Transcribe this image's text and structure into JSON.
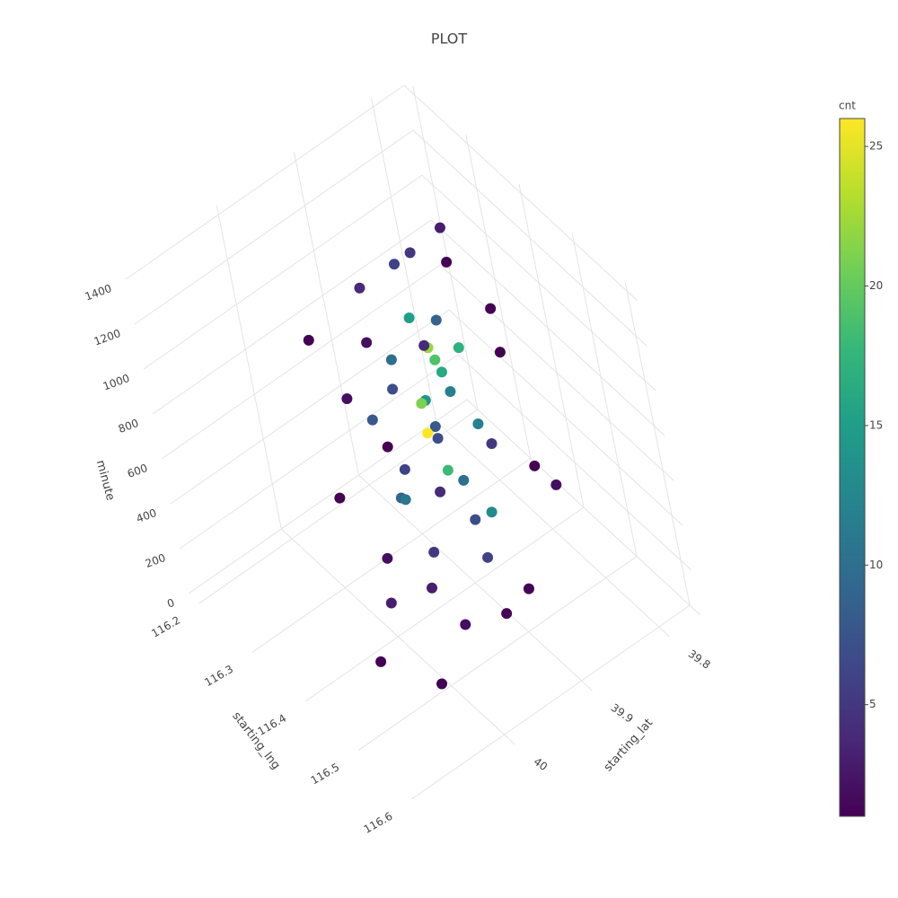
{
  "chart_data": {
    "type": "scatter3d",
    "title": "PLOT",
    "x_label": "starting_lng",
    "y_label": "starting_lat",
    "z_label": "minute",
    "colorbar_title": "cnt",
    "xlim": [
      116.18,
      116.62
    ],
    "ylim": [
      39.76,
      40.12
    ],
    "zlim": [
      0,
      1440
    ],
    "clim": [
      1,
      26
    ],
    "xticks": [
      116.2,
      116.3,
      116.4,
      116.5,
      116.6
    ],
    "yticks": [
      39.8,
      39.9,
      40
    ],
    "zticks": [
      0,
      200,
      400,
      600,
      800,
      1000,
      1200,
      1400
    ],
    "cticks": [
      5,
      10,
      15,
      20,
      25
    ],
    "x": [
      116.4,
      116.45,
      116.46,
      116.44,
      116.38,
      116.42,
      116.35,
      116.5,
      116.31,
      116.48,
      116.33,
      116.41,
      116.43,
      116.39,
      116.47,
      116.36,
      116.52,
      116.29,
      116.55,
      116.42,
      116.37,
      116.44,
      116.4,
      116.46,
      116.34,
      116.49,
      116.32,
      116.38,
      116.45,
      116.41,
      116.26,
      116.58,
      116.43,
      116.36,
      116.47,
      116.39,
      116.44,
      116.35,
      116.5,
      116.42,
      116.4,
      116.46,
      116.3,
      116.53,
      116.38,
      116.44,
      116.37,
      116.48,
      116.33,
      116.42
    ],
    "y": [
      39.91,
      39.92,
      39.93,
      39.91,
      39.9,
      39.95,
      39.88,
      39.97,
      39.99,
      39.86,
      39.92,
      39.89,
      39.93,
      39.96,
      39.9,
      39.84,
      40.02,
      39.95,
      39.88,
      39.87,
      39.93,
      39.98,
      40.0,
      39.95,
      39.89,
      39.93,
      39.86,
      39.97,
      39.89,
      39.92,
      39.9,
      39.96,
      40.04,
      39.8,
      39.94,
      39.88,
      39.9,
      39.94,
      39.91,
      39.96,
      39.85,
      39.98,
      39.92,
      39.85,
      39.91,
      39.94,
      40.02,
      39.88,
      39.96,
      39.9
    ],
    "z": [
      720,
      1150,
      1250,
      1050,
      600,
      300,
      900,
      200,
      1100,
      1300,
      400,
      850,
      950,
      500,
      1200,
      1350,
      100,
      700,
      800,
      1400,
      1000,
      650,
      150,
      1050,
      250,
      550,
      1200,
      850,
      400,
      1250,
      300,
      400,
      50,
      700,
      750,
      1100,
      200,
      1300,
      950,
      1050,
      500,
      300,
      900,
      600,
      1400,
      850,
      600,
      100,
      100,
      500
    ],
    "color_values": [
      8,
      19,
      22,
      16,
      7,
      5,
      4,
      2,
      1,
      1,
      6,
      12,
      14,
      9,
      17,
      3,
      1,
      2,
      1,
      1,
      10,
      11,
      3,
      21,
      4,
      7,
      5,
      8,
      13,
      15,
      1,
      1,
      1,
      1,
      18,
      9,
      6,
      4,
      12,
      7,
      5,
      3,
      2,
      2,
      6,
      26,
      1,
      1,
      2,
      10
    ],
    "colorscale": "viridis",
    "grid": true
  }
}
